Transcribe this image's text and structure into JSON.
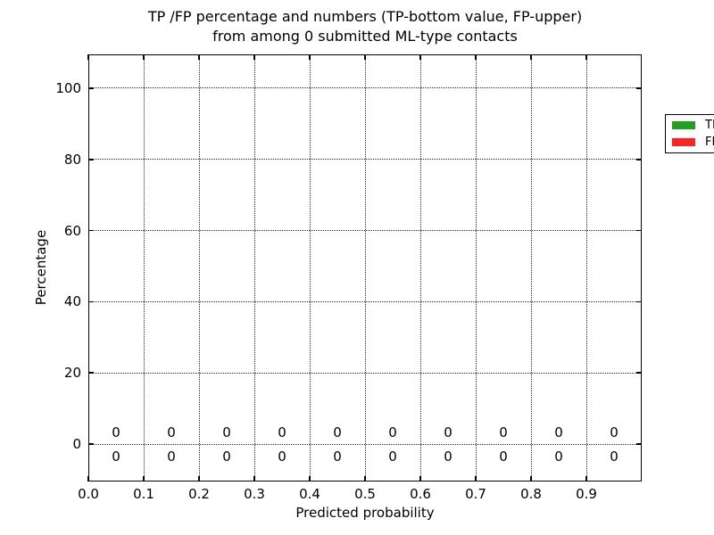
{
  "chart_data": {
    "type": "bar",
    "title_lines": [
      "TP /FP percentage and numbers (TP-bottom value, FP-upper)",
      "from among 0 submitted ML-type contacts"
    ],
    "xlabel": "Predicted probability",
    "ylabel": "Percentage",
    "xlim": [
      0.0,
      1.0
    ],
    "ylim": [
      -10.5,
      109.5
    ],
    "x_ticks": [
      0.0,
      0.1,
      0.2,
      0.3,
      0.4,
      0.5,
      0.6,
      0.7,
      0.8,
      0.9
    ],
    "x_tick_labels": [
      "0.0",
      "0.1",
      "0.2",
      "0.3",
      "0.4",
      "0.5",
      "0.6",
      "0.7",
      "0.8",
      "0.9"
    ],
    "y_ticks": [
      0,
      20,
      40,
      60,
      80,
      100
    ],
    "y_tick_labels": [
      "0",
      "20",
      "40",
      "60",
      "80",
      "100"
    ],
    "grid": true,
    "grid_style": "dotted",
    "categories": [
      0.05,
      0.15,
      0.25,
      0.35,
      0.45,
      0.55,
      0.65,
      0.75,
      0.85,
      0.95
    ],
    "series": [
      {
        "name": "TP",
        "color": "#22a022",
        "annotation_row": "below-zero-line",
        "values": [
          0,
          0,
          0,
          0,
          0,
          0,
          0,
          0,
          0,
          0
        ]
      },
      {
        "name": "FP",
        "color": "#ff2222",
        "annotation_row": "above-zero-line",
        "values": [
          0,
          0,
          0,
          0,
          0,
          0,
          0,
          0,
          0,
          0
        ]
      }
    ],
    "legend": {
      "position": "upper right",
      "entries": [
        {
          "label": "TP",
          "color": "#22a022"
        },
        {
          "label": "FP",
          "color": "#ff2222"
        }
      ]
    }
  }
}
